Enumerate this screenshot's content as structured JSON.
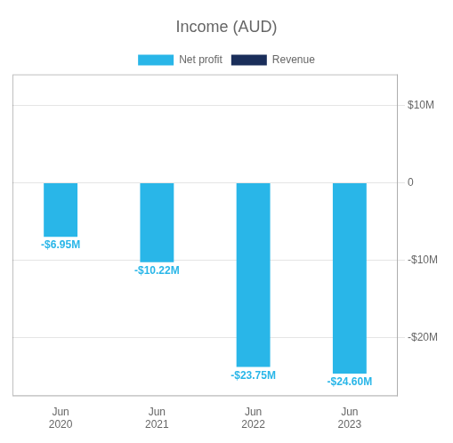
{
  "chart_data": {
    "type": "bar",
    "title": "Income (AUD)",
    "categories": [
      "Jun\n2020",
      "Jun\n2021",
      "Jun\n2022",
      "Jun\n2023"
    ],
    "series": [
      {
        "name": "Net profit",
        "color": "#29b6e8",
        "values": [
          -6.95,
          -10.22,
          -23.75,
          -24.6
        ],
        "value_labels": [
          "-$6.95M",
          "-$10.22M",
          "-$23.75M",
          "-$24.60M"
        ]
      },
      {
        "name": "Revenue",
        "color": "#1a2e5a",
        "values": [
          null,
          null,
          null,
          null
        ]
      }
    ],
    "ylim": [
      -27.5,
      14
    ],
    "yticks": [
      {
        "value": 10,
        "label": "$10M"
      },
      0,
      {
        "value": -10,
        "label": "-$10M"
      },
      {
        "value": -20,
        "label": "-$20M"
      }
    ],
    "grid": true,
    "legend": "top",
    "data_labels": true
  }
}
